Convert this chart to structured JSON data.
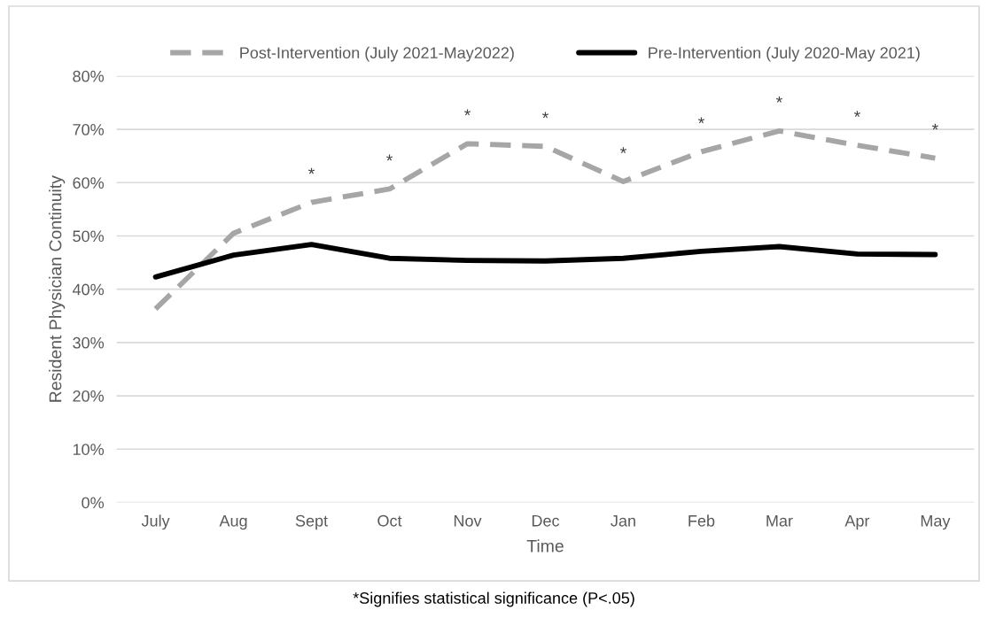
{
  "chart_data": {
    "type": "line",
    "xlabel": "Time",
    "ylabel": "Resident Physician Continuity",
    "categories": [
      "July",
      "Aug",
      "Sept",
      "Oct",
      "Nov",
      "Dec",
      "Jan",
      "Feb",
      "Mar",
      "Apr",
      "May"
    ],
    "series": [
      {
        "name": "Post-Intervention (July 2021-May2022)",
        "color": "#a6a6a6",
        "line_style": "dashed",
        "values": [
          36.3,
          50.5,
          56.3,
          58.8,
          67.3,
          66.8,
          60.2,
          65.8,
          69.7,
          67.0,
          64.6
        ]
      },
      {
        "name": "Pre-Intervention (July 2020-May 2021)",
        "color": "#000000",
        "line_style": "solid",
        "values": [
          42.3,
          46.4,
          48.4,
          45.8,
          45.4,
          45.3,
          45.8,
          47.1,
          48.0,
          46.6,
          46.5
        ]
      }
    ],
    "ylim": [
      0,
      80
    ],
    "yticks": [
      {
        "value": 0,
        "label": "0%"
      },
      {
        "value": 10,
        "label": "10%"
      },
      {
        "value": 20,
        "label": "20%"
      },
      {
        "value": 30,
        "label": "30%"
      },
      {
        "value": 40,
        "label": "40%"
      },
      {
        "value": 50,
        "label": "50%"
      },
      {
        "value": 60,
        "label": "60%"
      },
      {
        "value": 70,
        "label": "70%"
      },
      {
        "value": 80,
        "label": "80%"
      }
    ],
    "grid": "y",
    "legend": "top",
    "marker": "none",
    "annotations": [
      {
        "text": "*",
        "x": "Sept",
        "y": 56.3
      },
      {
        "text": "*",
        "x": "Oct",
        "y": 58.8
      },
      {
        "text": "*",
        "x": "Nov",
        "y": 67.3
      },
      {
        "text": "*",
        "x": "Dec",
        "y": 66.8
      },
      {
        "text": "*",
        "x": "Jan",
        "y": 60.2
      },
      {
        "text": "*",
        "x": "Feb",
        "y": 65.8
      },
      {
        "text": "*",
        "x": "Mar",
        "y": 69.7
      },
      {
        "text": "*",
        "x": "Apr",
        "y": 67.0
      },
      {
        "text": "*",
        "x": "May",
        "y": 64.6
      },
      "*Signifies statistical significance (P<.05)"
    ]
  }
}
